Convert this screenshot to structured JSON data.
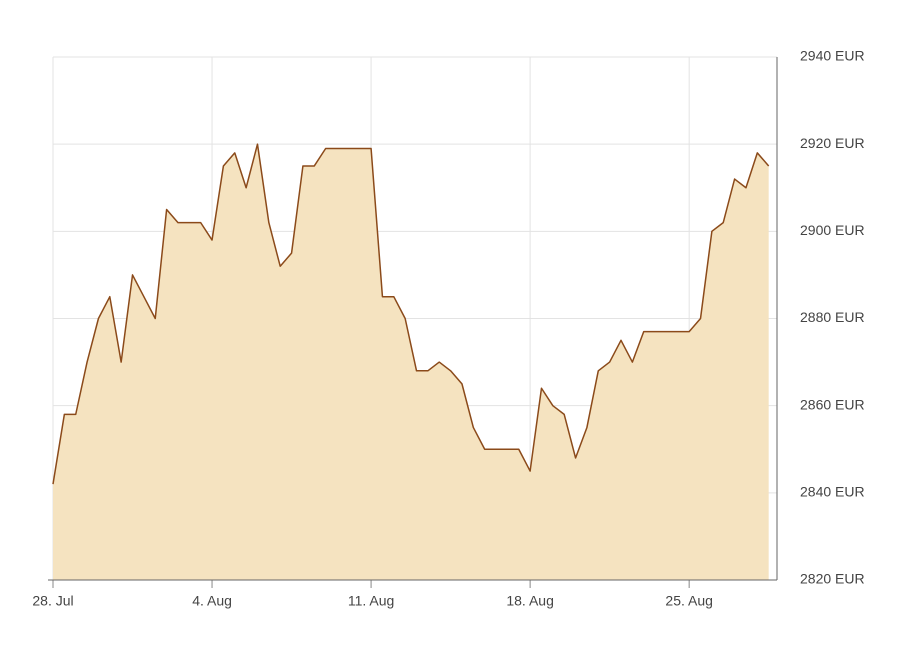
{
  "chart_data": {
    "type": "area",
    "categories": [
      "28. Jul",
      null,
      null,
      null,
      null,
      null,
      null,
      null,
      null,
      null,
      null,
      null,
      null,
      null,
      "4. Aug",
      null,
      null,
      null,
      null,
      null,
      null,
      null,
      null,
      null,
      null,
      null,
      null,
      null,
      "11. Aug",
      null,
      null,
      null,
      null,
      null,
      null,
      null,
      null,
      null,
      null,
      null,
      null,
      null,
      "18. Aug",
      null,
      null,
      null,
      null,
      null,
      null,
      null,
      null,
      null,
      null,
      null,
      null,
      null,
      "25. Aug",
      null,
      null,
      null,
      null,
      null,
      null,
      null
    ],
    "values": [
      2842,
      2858,
      2858,
      2870,
      2880,
      2885,
      2870,
      2890,
      2885,
      2880,
      2905,
      2902,
      2902,
      2902,
      2898,
      2915,
      2918,
      2910,
      2920,
      2902,
      2892,
      2895,
      2915,
      2915,
      2919,
      2919,
      2919,
      2919,
      2919,
      2885,
      2885,
      2880,
      2868,
      2868,
      2870,
      2868,
      2865,
      2855,
      2850,
      2850,
      2850,
      2850,
      2845,
      2864,
      2860,
      2858,
      2848,
      2855,
      2868,
      2870,
      2875,
      2870,
      2877,
      2877,
      2877,
      2877,
      2877,
      2880,
      2900,
      2902,
      2912,
      2910,
      2918,
      2915
    ],
    "color": "#8b4a1a",
    "fill_color": "#f5e3c0",
    "ylim": [
      2820,
      2940
    ],
    "yticks": [
      {
        "value": 2820,
        "label": "2820 EUR"
      },
      {
        "value": 2840,
        "label": "2840 EUR"
      },
      {
        "value": 2860,
        "label": "2860 EUR"
      },
      {
        "value": 2880,
        "label": "2880 EUR"
      },
      {
        "value": 2900,
        "label": "2900 EUR"
      },
      {
        "value": 2920,
        "label": "2920 EUR"
      },
      {
        "value": 2940,
        "label": "2940 EUR"
      }
    ],
    "grid": true
  }
}
